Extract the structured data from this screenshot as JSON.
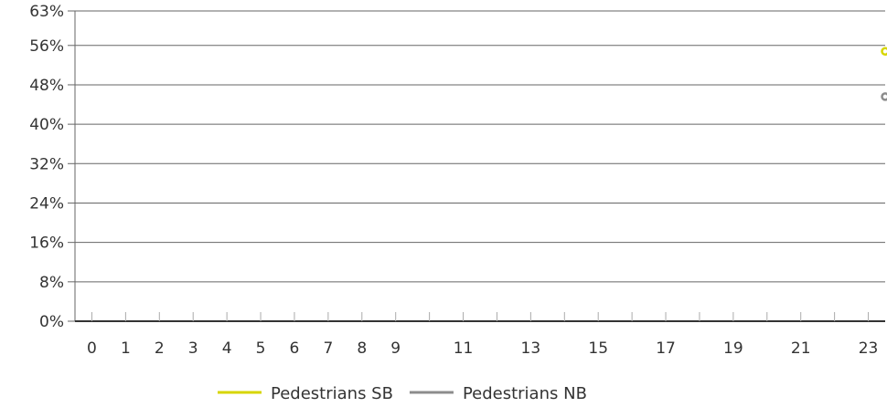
{
  "chart_data": {
    "type": "scatter",
    "x_ticks": [
      0,
      1,
      2,
      3,
      4,
      5,
      6,
      7,
      8,
      9,
      11,
      13,
      15,
      17,
      19,
      21,
      23
    ],
    "y_ticks": [
      "0%",
      "8%",
      "16%",
      "24%",
      "32%",
      "40%",
      "48%",
      "56%",
      "63%"
    ],
    "y_tick_values": [
      0,
      8,
      16,
      24,
      32,
      40,
      48,
      56,
      63
    ],
    "ylim": [
      0,
      63
    ],
    "x_range": [
      -0.5,
      23.5
    ],
    "grid": true,
    "legend_placement": "bottom-center",
    "series": [
      {
        "name": "Pedestrians SB",
        "color": "#d7d600",
        "points": [
          {
            "x": 23.5,
            "y": 54.8
          }
        ]
      },
      {
        "name": "Pedestrians NB",
        "color": "#8c8c8c",
        "points": [
          {
            "x": 23.5,
            "y": 45.6
          }
        ]
      }
    ]
  }
}
